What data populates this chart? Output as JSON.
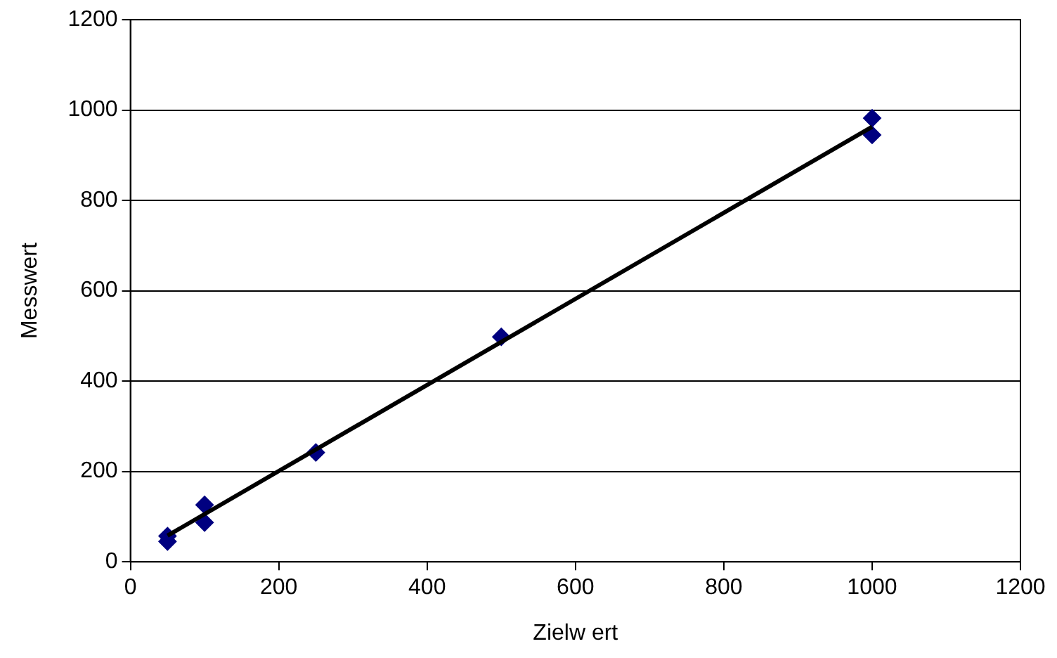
{
  "chart_data": {
    "type": "scatter",
    "xlabel": "Zielw ert",
    "ylabel": "Messwert",
    "xlim": [
      0,
      1200
    ],
    "xticks": [
      0,
      200,
      400,
      600,
      800,
      1000,
      1200
    ],
    "ylim": [
      0,
      1200
    ],
    "yticks": [
      0,
      200,
      400,
      600,
      800,
      1000,
      1200
    ],
    "grid": "y",
    "legend": false,
    "marker": "diamond",
    "series": [
      {
        "color": "#000080",
        "x": [
          50,
          50,
          100,
          100,
          250,
          500,
          1000,
          1000
        ],
        "values": [
          57,
          45,
          126,
          87,
          242,
          498,
          982,
          945
        ]
      },
      {
        "type": "line",
        "color": "#000000",
        "x": [
          50,
          1000
        ],
        "values": [
          58,
          963
        ],
        "line_style": "solid",
        "marker": "none"
      }
    ]
  }
}
